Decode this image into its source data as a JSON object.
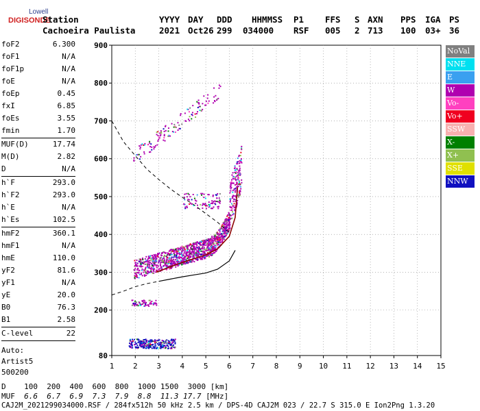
{
  "logo": {
    "line1": "Lowell",
    "line2": "DIGISONDE"
  },
  "header": {
    "row1": [
      "Station",
      "YYYY",
      "DAY",
      "DDD",
      "HHMMSS",
      "P1",
      "FFS",
      "S",
      "AXN",
      "PPS",
      "IGA",
      "PS"
    ],
    "row2": [
      "Cachoeira Paulista",
      "2021",
      "Oct26",
      "299",
      "034000",
      "RSF",
      "005",
      "2",
      "713",
      "100",
      "03+",
      "36"
    ]
  },
  "params": {
    "g1": [
      [
        "foF2",
        "6.300"
      ],
      [
        "foF1",
        "N/A"
      ],
      [
        "foF1p",
        "N/A"
      ],
      [
        "foE",
        "N/A"
      ],
      [
        "foEp",
        "0.45"
      ],
      [
        "fxI",
        "6.85"
      ],
      [
        "foEs",
        "3.55"
      ],
      [
        "fmin",
        "1.70"
      ]
    ],
    "g2": [
      [
        "MUF(D)",
        "17.74"
      ],
      [
        "M(D)",
        "2.82"
      ],
      [
        "D",
        "N/A"
      ]
    ],
    "g3": [
      [
        "h`F",
        "293.0"
      ],
      [
        "h`F2",
        "293.0"
      ],
      [
        "h`E",
        "N/A"
      ],
      [
        "h`Es",
        "102.5"
      ]
    ],
    "g4": [
      [
        "hmF2",
        "360.1"
      ],
      [
        "hmF1",
        "N/A"
      ],
      [
        "hmE",
        "110.0"
      ],
      [
        "yF2",
        "81.6"
      ],
      [
        "yF1",
        "N/A"
      ],
      [
        "yE",
        "20.0"
      ],
      [
        "B0",
        "76.3"
      ],
      [
        "B1",
        "2.58"
      ]
    ],
    "g5": [
      [
        "C-level",
        "22"
      ]
    ],
    "auto": [
      "Auto:",
      "Artist5",
      "500200"
    ]
  },
  "legend": [
    {
      "label": "NoVal",
      "color": "#808080"
    },
    {
      "label": "NNE",
      "color": "#00e0f0"
    },
    {
      "label": "E",
      "color": "#3aa0f0"
    },
    {
      "label": "W",
      "color": "#b000b0"
    },
    {
      "label": "Vo-",
      "color": "#ff40c0"
    },
    {
      "label": "Vo+",
      "color": "#f00020"
    },
    {
      "label": "SSW",
      "color": "#f8b0b0"
    },
    {
      "label": "X-",
      "color": "#008000"
    },
    {
      "label": "X+",
      "color": "#90c050"
    },
    {
      "label": "SSE",
      "color": "#e0e000"
    },
    {
      "label": "NNW",
      "color": "#1010c0"
    }
  ],
  "bottom": {
    "d_label": "D",
    "d_values": [
      "100",
      "200",
      "400",
      "600",
      "800",
      "1000",
      "1500",
      "3000"
    ],
    "d_unit": "[km]",
    "muf_label": "MUF",
    "muf_values": [
      "6.6",
      "6.7",
      "6.9",
      "7.3",
      "7.9",
      "8.8",
      "11.3",
      "17.7"
    ],
    "muf_unit": "[MHz]"
  },
  "footer": "CAJ2M_2021299034000.RSF / 284fx512h 50 kHz 2.5 km / DPS-4D CAJ2M 023 / 22.7 S 315.0 E Ion2Png 1.3.20",
  "chart_data": {
    "type": "scatter",
    "xlim": [
      1,
      15
    ],
    "ylim": [
      80,
      900
    ],
    "xticks": [
      1,
      2,
      3,
      4,
      5,
      6,
      7,
      8,
      9,
      10,
      11,
      12,
      13,
      14,
      15
    ],
    "yticks": [
      80,
      200,
      300,
      400,
      500,
      600,
      700,
      800,
      900
    ],
    "grid": "dotted",
    "series": [
      {
        "kind": "dashed-curve",
        "points": [
          [
            1.0,
            700
          ],
          [
            1.5,
            645
          ],
          [
            2.0,
            608
          ],
          [
            2.5,
            572
          ],
          [
            3.0,
            545
          ],
          [
            3.5,
            520
          ],
          [
            4.0,
            498
          ],
          [
            4.5,
            478
          ],
          [
            5.0,
            455
          ],
          [
            5.5,
            432
          ],
          [
            6.0,
            405
          ]
        ]
      },
      {
        "kind": "dashed-curve",
        "points": [
          [
            1.0,
            240
          ],
          [
            1.5,
            250
          ],
          [
            2.0,
            262
          ],
          [
            2.5,
            270
          ],
          [
            3.0,
            276
          ]
        ]
      },
      {
        "kind": "profile-line",
        "points": [
          [
            3.0,
            276
          ],
          [
            3.5,
            282
          ],
          [
            4.0,
            288
          ],
          [
            4.5,
            293
          ],
          [
            5.0,
            298
          ],
          [
            5.5,
            308
          ],
          [
            6.0,
            330
          ],
          [
            6.25,
            358
          ]
        ]
      },
      {
        "kind": "trace-line",
        "points": [
          [
            2.9,
            300
          ],
          [
            3.5,
            315
          ],
          [
            4.0,
            326
          ],
          [
            4.5,
            336
          ],
          [
            5.0,
            346
          ],
          [
            5.5,
            362
          ],
          [
            6.0,
            395
          ],
          [
            6.25,
            445
          ],
          [
            6.35,
            525
          ]
        ]
      },
      {
        "kind": "echo",
        "label": "F2-O",
        "x_range": [
          1.9,
          6.5
        ],
        "y_center": [
          300,
          420
        ],
        "color": "#b000b0"
      },
      {
        "kind": "echo",
        "label": "F2-2hop",
        "x_range": [
          1.9,
          5.6
        ],
        "y_center": [
          600,
          780
        ],
        "color": "#b000b0"
      },
      {
        "kind": "echo",
        "label": "Es",
        "x_range": [
          1.7,
          3.7
        ],
        "y_center": [
          100,
          120
        ],
        "color": "#1010c0"
      },
      {
        "kind": "echo",
        "label": "Es-2hop",
        "x_range": [
          1.8,
          2.9
        ],
        "y_center": [
          215,
          230
        ],
        "color": "#b000b0"
      }
    ]
  }
}
